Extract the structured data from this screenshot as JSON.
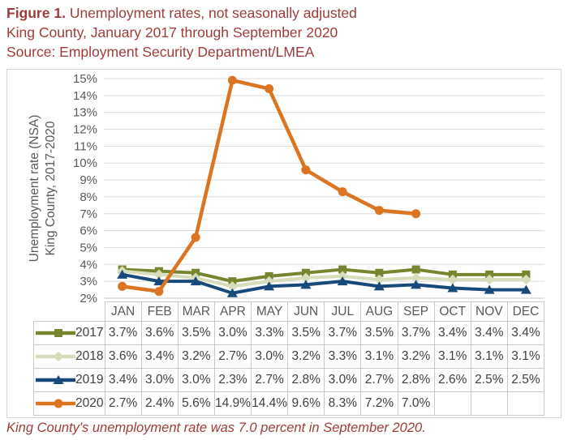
{
  "header": {
    "figure_label": "Figure 1.",
    "title": "Unemployment rates, not seasonally adjusted",
    "subtitle": "King County, January 2017 through September 2020",
    "source": "Source: Employment Security Department/LMEA"
  },
  "footer": {
    "note": "King County's unemployment rate was 7.0 percent in September 2020."
  },
  "colors": {
    "title_red": "#9D3C39",
    "axis_text_gray": "#595959",
    "grid_gray": "#DCDCDC",
    "axis_line_gray": "#C9C9C9",
    "table_border_gray": "#C8C8C8",
    "value_text_gray": "#404040"
  },
  "chart_data": {
    "type": "line",
    "title": "Unemployment rates, not seasonally adjusted, King County, January 2017 through September 2020",
    "x": [
      "JAN",
      "FEB",
      "MAR",
      "APR",
      "MAY",
      "JUN",
      "JUL",
      "AUG",
      "SEP",
      "OCT",
      "NOV",
      "DEC"
    ],
    "series": [
      {
        "name": "2017",
        "marker": "square",
        "color": "#76862F",
        "values": [
          3.7,
          3.6,
          3.5,
          3.0,
          3.3,
          3.5,
          3.7,
          3.5,
          3.7,
          3.4,
          3.4,
          3.4
        ]
      },
      {
        "name": "2018",
        "marker": "diamond",
        "color": "#D7DCBA",
        "values": [
          3.6,
          3.4,
          3.2,
          2.7,
          3.0,
          3.2,
          3.3,
          3.1,
          3.2,
          3.1,
          3.1,
          3.1
        ]
      },
      {
        "name": "2019",
        "marker": "triangle",
        "color": "#17497B",
        "values": [
          3.4,
          3.0,
          3.0,
          2.3,
          2.7,
          2.8,
          3.0,
          2.7,
          2.8,
          2.6,
          2.5,
          2.5
        ]
      },
      {
        "name": "2020",
        "marker": "circle",
        "color": "#DC7522",
        "values": [
          2.7,
          2.4,
          5.6,
          14.9,
          14.4,
          9.6,
          8.3,
          7.2,
          7.0,
          null,
          null,
          null
        ]
      }
    ],
    "ylabel_line1": "Unemployment rate (NSA)",
    "ylabel_line2": "King County, 2017-2020",
    "ylim": [
      2,
      15
    ],
    "y_ticks": [
      "15%",
      "14%",
      "13%",
      "12%",
      "11%",
      "10%",
      "9%",
      "8%",
      "7%",
      "6%",
      "5%",
      "4%",
      "3%",
      "2%"
    ],
    "grid": true,
    "legend_position": "table-left",
    "value_suffix": "%"
  }
}
